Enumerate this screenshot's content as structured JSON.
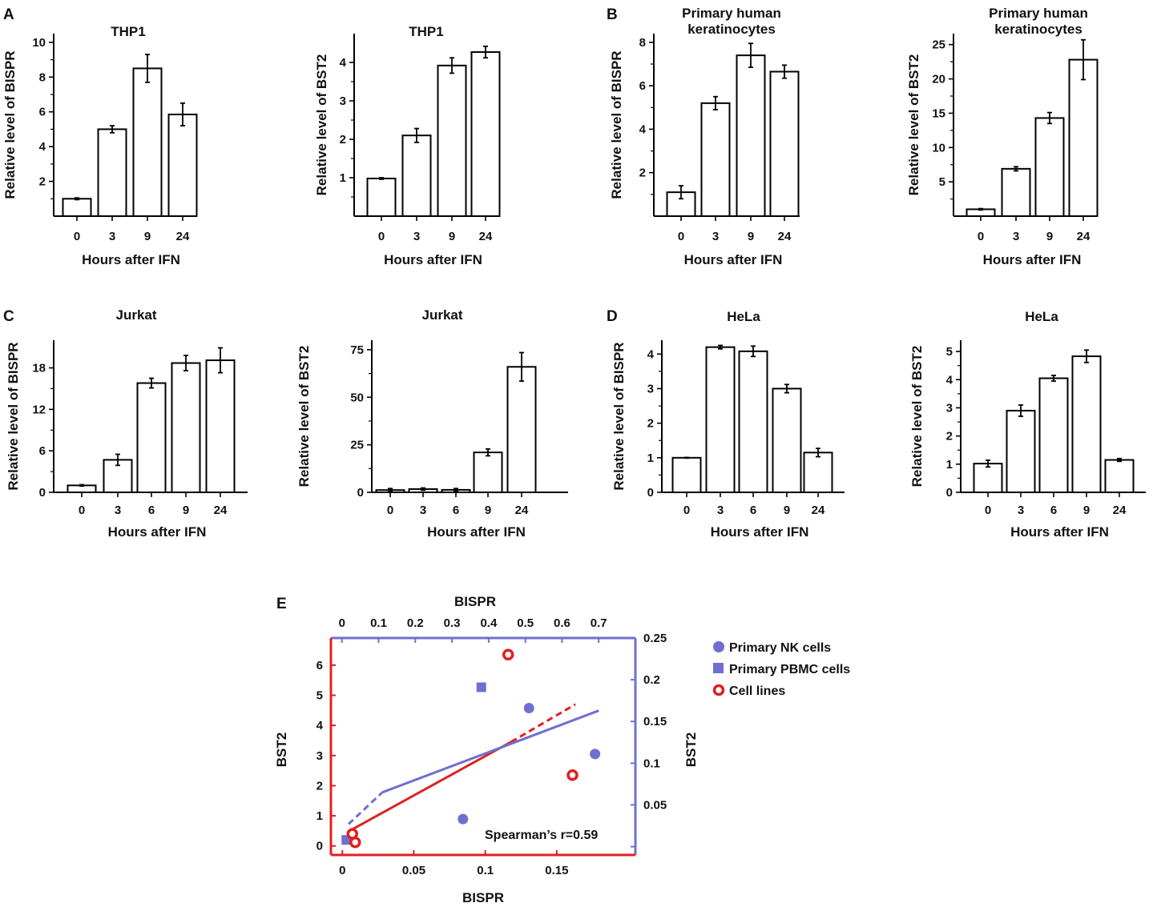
{
  "panels": {
    "A": "A",
    "B": "B",
    "C": "C",
    "D": "D",
    "E": "E"
  },
  "chart_data": [
    {
      "id": "A1",
      "type": "bar",
      "title": [
        "THP1"
      ],
      "xlabel": "Hours after IFN",
      "ylabel": "Relative level of BISPR",
      "categories": [
        "0",
        "3",
        "9",
        "24"
      ],
      "values": [
        1.0,
        5.0,
        8.5,
        5.85
      ],
      "errors": [
        0.05,
        0.2,
        0.8,
        0.65
      ],
      "ylim": [
        0,
        10.5
      ],
      "yticks": [
        2,
        4,
        6,
        8,
        10
      ]
    },
    {
      "id": "A2",
      "type": "bar",
      "title": [
        "THP1"
      ],
      "xlabel": "Hours after IFN",
      "ylabel": "Relative level of BST2",
      "categories": [
        "0",
        "3",
        "9",
        "24"
      ],
      "values": [
        0.98,
        2.1,
        3.92,
        4.27
      ],
      "errors": [
        0.02,
        0.18,
        0.2,
        0.15
      ],
      "ylim": [
        0,
        4.75
      ],
      "yticks": [
        1,
        2,
        3,
        4
      ]
    },
    {
      "id": "B1",
      "type": "bar",
      "title": [
        "Primary human",
        "keratinocytes"
      ],
      "xlabel": "Hours after IFN",
      "ylabel": "Relative level of BISPR",
      "categories": [
        "0",
        "3",
        "9",
        "24"
      ],
      "values": [
        1.1,
        5.2,
        7.4,
        6.65
      ],
      "errors": [
        0.3,
        0.3,
        0.55,
        0.3
      ],
      "ylim": [
        0,
        8.4
      ],
      "yticks": [
        2,
        4,
        6,
        8
      ]
    },
    {
      "id": "B2",
      "type": "bar",
      "title": [
        "Primary human",
        "keratinocytes"
      ],
      "xlabel": "Hours after IFN",
      "ylabel": "Relative level of BST2",
      "categories": [
        "0",
        "3",
        "9",
        "24"
      ],
      "values": [
        1.0,
        6.9,
        14.3,
        22.8
      ],
      "errors": [
        0.1,
        0.3,
        0.8,
        2.9
      ],
      "ylim": [
        0,
        26.6
      ],
      "yticks": [
        5,
        10,
        15,
        20,
        25
      ]
    },
    {
      "id": "C1",
      "type": "bar",
      "title": [
        "Jurkat"
      ],
      "xlabel": "Hours after IFN",
      "ylabel": "Relative level of BISPR",
      "categories": [
        "0",
        "3",
        "6",
        "9",
        "24"
      ],
      "values": [
        1.0,
        4.7,
        15.8,
        18.7,
        19.1
      ],
      "errors": [
        0.1,
        0.8,
        0.7,
        1.1,
        1.8
      ],
      "ylim": [
        0,
        22
      ],
      "yticks": [
        0,
        6,
        12,
        18
      ]
    },
    {
      "id": "C2",
      "type": "bar",
      "title": [
        "Jurkat"
      ],
      "xlabel": "Hours after IFN",
      "ylabel": "Relative level of BST2",
      "categories": [
        "0",
        "3",
        "6",
        "9",
        "24"
      ],
      "values": [
        1.2,
        1.7,
        1.3,
        21.0,
        66.0
      ],
      "errors": [
        0.8,
        0.6,
        0.7,
        1.8,
        7.5
      ],
      "ylim": [
        0,
        80
      ],
      "yticks": [
        0,
        25,
        50,
        75
      ]
    },
    {
      "id": "D1",
      "type": "bar",
      "title": [
        "HeLa"
      ],
      "xlabel": "Hours after IFN",
      "ylabel": "Relative level of BISPR",
      "categories": [
        "0",
        "3",
        "6",
        "9",
        "24"
      ],
      "values": [
        1.0,
        4.2,
        4.08,
        3.0,
        1.15
      ],
      "errors": [
        0.01,
        0.05,
        0.15,
        0.12,
        0.12
      ],
      "ylim": [
        0,
        4.4
      ],
      "yticks": [
        0,
        1,
        2,
        3,
        4
      ]
    },
    {
      "id": "D2",
      "type": "bar",
      "title": [
        "HeLa"
      ],
      "xlabel": "Hours after IFN",
      "ylabel": "Relative level of BST2",
      "categories": [
        "0",
        "3",
        "6",
        "9",
        "24"
      ],
      "values": [
        1.02,
        2.9,
        4.05,
        4.83,
        1.15
      ],
      "errors": [
        0.12,
        0.2,
        0.1,
        0.22,
        0.05
      ],
      "ylim": [
        0,
        5.4
      ],
      "yticks": [
        0,
        1,
        2,
        3,
        4,
        5
      ]
    },
    {
      "id": "E",
      "type": "scatter",
      "xlabel_bottom": "BISPR",
      "xlabel_top": "BISPR",
      "ylabel_left": "BST2",
      "ylabel_right": "BST2",
      "xlim_bottom": [
        -0.008,
        0.205
      ],
      "xticks_bottom": [
        0,
        0.05,
        0.1,
        0.15
      ],
      "ylim_left": [
        -0.3,
        6.9
      ],
      "yticks_left": [
        0,
        1,
        2,
        3,
        4,
        5,
        6
      ],
      "xlim_top": [
        -0.03,
        0.8
      ],
      "xticks_top": [
        0,
        0.1,
        0.2,
        0.3,
        0.4,
        0.5,
        0.6,
        0.7
      ],
      "ylim_right": [
        -0.01,
        0.25
      ],
      "yticks_right": [
        0.05,
        0.1,
        0.15,
        0.2,
        0.25
      ],
      "annotation": "Spearman’s r=0.59",
      "colors": {
        "left": "#e02020",
        "right": "#6f6fd0"
      },
      "series": [
        {
          "name": "Primary NK cells",
          "marker": "circle",
          "axes": "top-right",
          "color": "#6f6fd0",
          "points": [
            [
              0.33,
              0.033
            ],
            [
              0.51,
              0.166
            ],
            [
              0.69,
              0.111
            ]
          ]
        },
        {
          "name": "Primary PBMC cells",
          "marker": "square",
          "axes": "top-right",
          "color": "#6f6fd0",
          "points": [
            [
              0.38,
              0.191
            ],
            [
              0.012,
              0.008
            ]
          ]
        },
        {
          "name": "Cell lines",
          "marker": "ring",
          "axes": "bottom-left",
          "color": "#e02020",
          "points": [
            [
              0.116,
              6.35
            ],
            [
              0.161,
              2.35
            ],
            [
              0.007,
              0.4
            ],
            [
              0.009,
              0.12
            ]
          ]
        }
      ],
      "fits": [
        {
          "axes": "bottom-left",
          "color": "#e02020",
          "solid": [
            [
              0.005,
              0.5
            ],
            [
              0.118,
              3.45
            ]
          ],
          "dashed": [
            [
              0.118,
              3.45
            ],
            [
              0.163,
              4.7
            ]
          ]
        },
        {
          "axes": "top-right",
          "color": "#6f6fd0",
          "dashed": [
            [
              0.018,
              0.027
            ],
            [
              0.11,
              0.065
            ]
          ],
          "solid": [
            [
              0.11,
              0.065
            ],
            [
              0.7,
              0.163
            ]
          ]
        }
      ]
    }
  ]
}
